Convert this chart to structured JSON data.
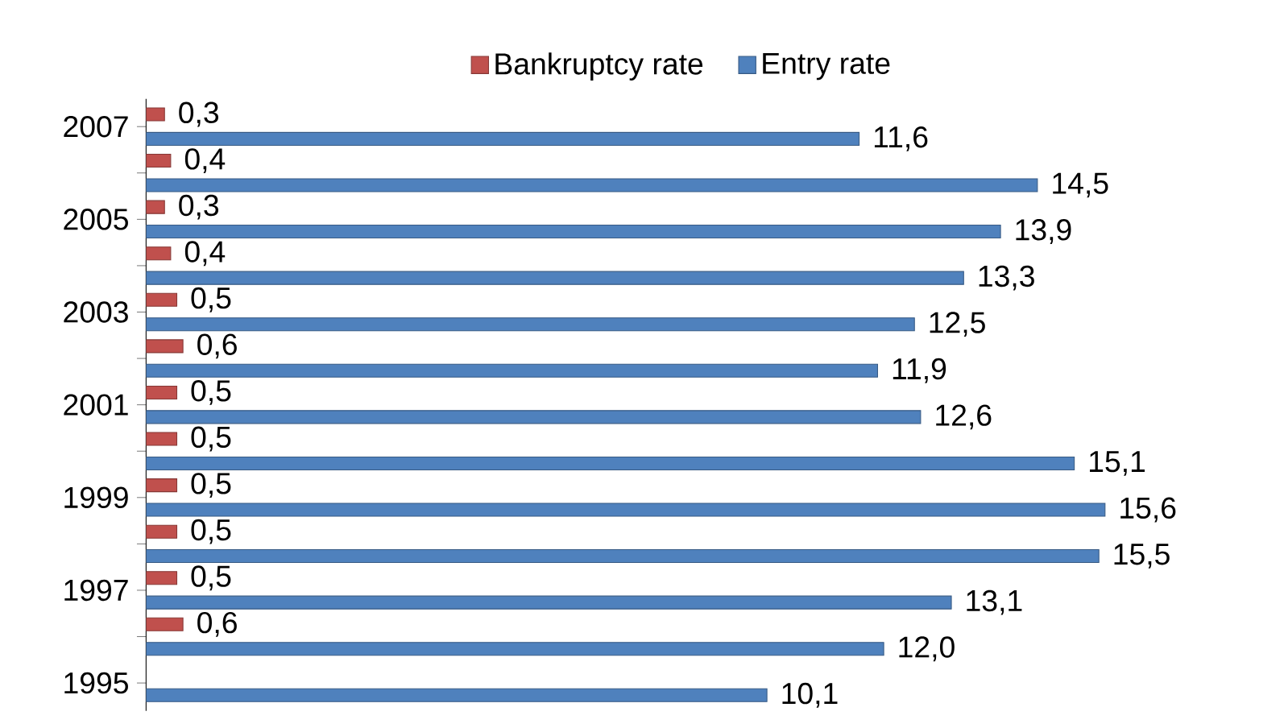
{
  "chart_data": {
    "type": "bar",
    "orientation": "horizontal",
    "categories": [
      "2007",
      null,
      "2005",
      null,
      "2003",
      null,
      "2001",
      null,
      "1999",
      null,
      "1997",
      null,
      "1995"
    ],
    "series": [
      {
        "name": "Bankruptcy rate",
        "color": "#c0504d",
        "values": [
          0.3,
          0.4,
          0.3,
          0.4,
          0.5,
          0.6,
          0.5,
          0.5,
          0.5,
          0.5,
          0.5,
          0.6,
          null
        ],
        "value_labels": [
          "0,3",
          "0,4",
          "0,3",
          "0,4",
          "0,5",
          "0,6",
          "0,5",
          "0,5",
          "0,5",
          "0,5",
          "0,5",
          "0,6",
          null
        ]
      },
      {
        "name": "Entry rate",
        "color": "#4f81bd",
        "values": [
          11.6,
          14.5,
          13.9,
          13.3,
          12.5,
          11.9,
          12.6,
          15.1,
          15.6,
          15.5,
          13.1,
          12.0,
          10.1
        ],
        "value_labels": [
          "11,6",
          "14,5",
          "13,9",
          "13,3",
          "12,5",
          "11,9",
          "12,6",
          "15,1",
          "15,6",
          "15,5",
          "13,1",
          "12,0",
          "10,1"
        ]
      }
    ],
    "legend": "top"
  }
}
